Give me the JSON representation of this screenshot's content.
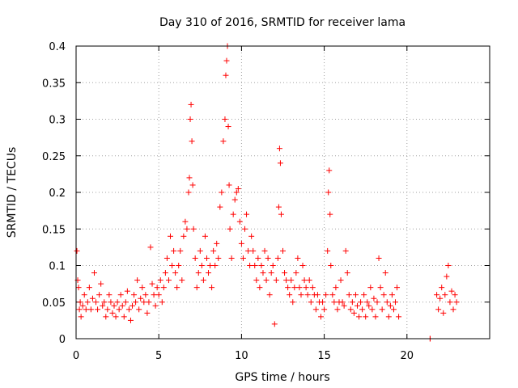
{
  "chart_data": {
    "type": "scatter",
    "title": "Day 310 of 2016, SRMTID for receiver lama",
    "xlabel": "GPS time / hours",
    "ylabel": "SRMTID / TECUs",
    "xlim": [
      0,
      25
    ],
    "ylim": [
      0,
      0.4
    ],
    "xticks": [
      0,
      5,
      10,
      15,
      20
    ],
    "xtick_labels": [
      "0",
      "5",
      "10",
      "15",
      "20"
    ],
    "yticks": [
      0,
      0.05,
      0.1,
      0.15,
      0.2,
      0.25,
      0.3,
      0.35,
      0.4
    ],
    "ytick_labels": [
      "0",
      "0.05",
      "0.1",
      "0.15",
      "0.2",
      "0.25",
      "0.3",
      "0.35",
      "0.4"
    ],
    "grid": true,
    "legend": "none",
    "marker": "+",
    "color": "#ff0000",
    "series": [
      {
        "name": "SRMTID",
        "points": [
          [
            0.05,
            0.12
          ],
          [
            0.1,
            0.08
          ],
          [
            0.15,
            0.07
          ],
          [
            0.2,
            0.04
          ],
          [
            0.25,
            0.05
          ],
          [
            0.3,
            0.03
          ],
          [
            0.4,
            0.045
          ],
          [
            0.5,
            0.06
          ],
          [
            0.6,
            0.04
          ],
          [
            0.7,
            0.05
          ],
          [
            0.8,
            0.07
          ],
          [
            0.9,
            0.04
          ],
          [
            1.0,
            0.055
          ],
          [
            1.1,
            0.09
          ],
          [
            1.2,
            0.05
          ],
          [
            1.3,
            0.04
          ],
          [
            1.4,
            0.06
          ],
          [
            1.5,
            0.075
          ],
          [
            1.6,
            0.045
          ],
          [
            1.7,
            0.05
          ],
          [
            1.8,
            0.03
          ],
          [
            1.9,
            0.04
          ],
          [
            2.0,
            0.06
          ],
          [
            2.1,
            0.05
          ],
          [
            2.2,
            0.035
          ],
          [
            2.3,
            0.045
          ],
          [
            2.4,
            0.03
          ],
          [
            2.5,
            0.05
          ],
          [
            2.6,
            0.04
          ],
          [
            2.7,
            0.06
          ],
          [
            2.8,
            0.045
          ],
          [
            2.9,
            0.03
          ],
          [
            3.0,
            0.05
          ],
          [
            3.1,
            0.065
          ],
          [
            3.2,
            0.04
          ],
          [
            3.3,
            0.025
          ],
          [
            3.4,
            0.045
          ],
          [
            3.5,
            0.06
          ],
          [
            3.6,
            0.05
          ],
          [
            3.7,
            0.08
          ],
          [
            3.8,
            0.04
          ],
          [
            3.9,
            0.055
          ],
          [
            4.0,
            0.07
          ],
          [
            4.1,
            0.05
          ],
          [
            4.2,
            0.06
          ],
          [
            4.3,
            0.035
          ],
          [
            4.4,
            0.05
          ],
          [
            4.5,
            0.125
          ],
          [
            4.6,
            0.075
          ],
          [
            4.7,
            0.06
          ],
          [
            4.8,
            0.045
          ],
          [
            4.9,
            0.07
          ],
          [
            5.0,
            0.06
          ],
          [
            5.1,
            0.08
          ],
          [
            5.2,
            0.05
          ],
          [
            5.3,
            0.07
          ],
          [
            5.4,
            0.09
          ],
          [
            5.5,
            0.11
          ],
          [
            5.6,
            0.08
          ],
          [
            5.7,
            0.14
          ],
          [
            5.8,
            0.1
          ],
          [
            5.9,
            0.12
          ],
          [
            6.0,
            0.09
          ],
          [
            6.1,
            0.07
          ],
          [
            6.2,
            0.1
          ],
          [
            6.3,
            0.12
          ],
          [
            6.4,
            0.08
          ],
          [
            6.5,
            0.14
          ],
          [
            6.6,
            0.16
          ],
          [
            6.7,
            0.15
          ],
          [
            6.8,
            0.2
          ],
          [
            6.85,
            0.22
          ],
          [
            6.9,
            0.3
          ],
          [
            6.95,
            0.32
          ],
          [
            7.0,
            0.27
          ],
          [
            7.05,
            0.21
          ],
          [
            7.1,
            0.15
          ],
          [
            7.2,
            0.11
          ],
          [
            7.3,
            0.07
          ],
          [
            7.4,
            0.09
          ],
          [
            7.5,
            0.12
          ],
          [
            7.6,
            0.1
          ],
          [
            7.7,
            0.08
          ],
          [
            7.8,
            0.14
          ],
          [
            7.9,
            0.11
          ],
          [
            8.0,
            0.09
          ],
          [
            8.1,
            0.1
          ],
          [
            8.2,
            0.07
          ],
          [
            8.3,
            0.12
          ],
          [
            8.4,
            0.1
          ],
          [
            8.5,
            0.13
          ],
          [
            8.6,
            0.11
          ],
          [
            8.7,
            0.18
          ],
          [
            8.8,
            0.2
          ],
          [
            8.9,
            0.27
          ],
          [
            9.0,
            0.3
          ],
          [
            9.05,
            0.36
          ],
          [
            9.1,
            0.38
          ],
          [
            9.15,
            0.4
          ],
          [
            9.2,
            0.29
          ],
          [
            9.25,
            0.21
          ],
          [
            9.3,
            0.15
          ],
          [
            9.4,
            0.11
          ],
          [
            9.5,
            0.17
          ],
          [
            9.6,
            0.19
          ],
          [
            9.7,
            0.2
          ],
          [
            9.8,
            0.205
          ],
          [
            9.9,
            0.16
          ],
          [
            10.0,
            0.13
          ],
          [
            10.1,
            0.11
          ],
          [
            10.2,
            0.15
          ],
          [
            10.3,
            0.17
          ],
          [
            10.4,
            0.12
          ],
          [
            10.5,
            0.1
          ],
          [
            10.6,
            0.14
          ],
          [
            10.7,
            0.12
          ],
          [
            10.8,
            0.1
          ],
          [
            10.9,
            0.08
          ],
          [
            11.0,
            0.11
          ],
          [
            11.1,
            0.07
          ],
          [
            11.2,
            0.1
          ],
          [
            11.3,
            0.09
          ],
          [
            11.4,
            0.12
          ],
          [
            11.5,
            0.08
          ],
          [
            11.6,
            0.11
          ],
          [
            11.7,
            0.06
          ],
          [
            11.8,
            0.09
          ],
          [
            11.9,
            0.1
          ],
          [
            12.0,
            0.02
          ],
          [
            12.1,
            0.08
          ],
          [
            12.2,
            0.11
          ],
          [
            12.25,
            0.18
          ],
          [
            12.3,
            0.26
          ],
          [
            12.35,
            0.24
          ],
          [
            12.4,
            0.17
          ],
          [
            12.5,
            0.12
          ],
          [
            12.6,
            0.09
          ],
          [
            12.7,
            0.08
          ],
          [
            12.8,
            0.07
          ],
          [
            12.9,
            0.06
          ],
          [
            13.0,
            0.08
          ],
          [
            13.1,
            0.05
          ],
          [
            13.2,
            0.07
          ],
          [
            13.3,
            0.09
          ],
          [
            13.4,
            0.11
          ],
          [
            13.5,
            0.07
          ],
          [
            13.6,
            0.06
          ],
          [
            13.7,
            0.1
          ],
          [
            13.8,
            0.08
          ],
          [
            13.9,
            0.07
          ],
          [
            14.0,
            0.06
          ],
          [
            14.1,
            0.08
          ],
          [
            14.2,
            0.05
          ],
          [
            14.3,
            0.07
          ],
          [
            14.4,
            0.06
          ],
          [
            14.5,
            0.04
          ],
          [
            14.6,
            0.06
          ],
          [
            14.7,
            0.05
          ],
          [
            14.8,
            0.03
          ],
          [
            14.9,
            0.05
          ],
          [
            15.0,
            0.04
          ],
          [
            15.1,
            0.06
          ],
          [
            15.2,
            0.12
          ],
          [
            15.25,
            0.2
          ],
          [
            15.3,
            0.23
          ],
          [
            15.35,
            0.17
          ],
          [
            15.4,
            0.1
          ],
          [
            15.5,
            0.06
          ],
          [
            15.6,
            0.05
          ],
          [
            15.7,
            0.07
          ],
          [
            15.8,
            0.04
          ],
          [
            15.9,
            0.05
          ],
          [
            16.0,
            0.08
          ],
          [
            16.1,
            0.05
          ],
          [
            16.2,
            0.045
          ],
          [
            16.3,
            0.12
          ],
          [
            16.4,
            0.09
          ],
          [
            16.5,
            0.06
          ],
          [
            16.6,
            0.04
          ],
          [
            16.7,
            0.05
          ],
          [
            16.8,
            0.035
          ],
          [
            16.9,
            0.06
          ],
          [
            17.0,
            0.045
          ],
          [
            17.1,
            0.03
          ],
          [
            17.2,
            0.05
          ],
          [
            17.3,
            0.04
          ],
          [
            17.4,
            0.06
          ],
          [
            17.5,
            0.03
          ],
          [
            17.6,
            0.05
          ],
          [
            17.7,
            0.045
          ],
          [
            17.8,
            0.07
          ],
          [
            17.9,
            0.04
          ],
          [
            18.0,
            0.055
          ],
          [
            18.1,
            0.03
          ],
          [
            18.2,
            0.05
          ],
          [
            18.3,
            0.11
          ],
          [
            18.4,
            0.07
          ],
          [
            18.5,
            0.04
          ],
          [
            18.6,
            0.06
          ],
          [
            18.7,
            0.09
          ],
          [
            18.8,
            0.05
          ],
          [
            18.9,
            0.03
          ],
          [
            19.0,
            0.045
          ],
          [
            19.1,
            0.06
          ],
          [
            19.2,
            0.04
          ],
          [
            19.3,
            0.05
          ],
          [
            19.4,
            0.07
          ],
          [
            19.5,
            0.03
          ],
          [
            21.4,
            0.0
          ],
          [
            21.4,
            0.0
          ],
          [
            21.8,
            0.06
          ],
          [
            21.9,
            0.04
          ],
          [
            22.0,
            0.055
          ],
          [
            22.1,
            0.07
          ],
          [
            22.2,
            0.035
          ],
          [
            22.3,
            0.06
          ],
          [
            22.4,
            0.085
          ],
          [
            22.5,
            0.1
          ],
          [
            22.6,
            0.05
          ],
          [
            22.7,
            0.065
          ],
          [
            22.8,
            0.04
          ],
          [
            22.9,
            0.06
          ],
          [
            23.0,
            0.05
          ]
        ]
      }
    ]
  }
}
